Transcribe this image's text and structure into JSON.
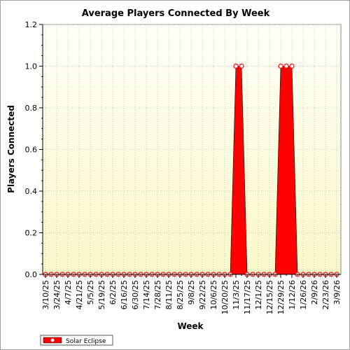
{
  "chart_data": {
    "type": "area",
    "title": "Average Players Connected By Week",
    "xlabel": "Week",
    "ylabel": "Players Connected",
    "ylim": [
      0,
      1.2
    ],
    "yticks": [
      "0.0",
      "0.2",
      "0.4",
      "0.6",
      "0.8",
      "1.0",
      "1.2"
    ],
    "x_tick_labels": [
      "3/10/25",
      "3/24/25",
      "4/7/25",
      "4/21/25",
      "5/5/25",
      "5/19/25",
      "6/2/25",
      "6/16/25",
      "6/30/25",
      "7/14/25",
      "7/28/25",
      "8/11/25",
      "8/25/25",
      "9/8/25",
      "9/22/25",
      "10/6/25",
      "10/20/25",
      "11/3/25",
      "11/17/25",
      "12/1/25",
      "12/15/25",
      "12/29/25",
      "1/12/26",
      "1/26/26",
      "2/9/26",
      "2/23/26",
      "3/9/26"
    ],
    "x": [
      "3/10/25",
      "3/17/25",
      "3/24/25",
      "3/31/25",
      "4/7/25",
      "4/14/25",
      "4/21/25",
      "4/28/25",
      "5/5/25",
      "5/12/25",
      "5/19/25",
      "5/26/25",
      "6/2/25",
      "6/9/25",
      "6/16/25",
      "6/23/25",
      "6/30/25",
      "7/7/25",
      "7/14/25",
      "7/21/25",
      "7/28/25",
      "8/4/25",
      "8/11/25",
      "8/18/25",
      "8/25/25",
      "9/1/25",
      "9/8/25",
      "9/15/25",
      "9/22/25",
      "9/29/25",
      "10/6/25",
      "10/13/25",
      "10/20/25",
      "10/27/25",
      "11/3/25",
      "11/10/25",
      "11/17/25",
      "11/24/25",
      "12/1/25",
      "12/8/25",
      "12/15/25",
      "12/22/25",
      "12/29/25",
      "1/5/26",
      "1/12/26",
      "1/19/26",
      "1/26/26",
      "2/2/26",
      "2/9/26",
      "2/16/26",
      "2/23/26",
      "3/2/26",
      "3/9/26"
    ],
    "series": [
      {
        "name": "Solar Eclipse",
        "color": "#ff0000",
        "values": [
          0,
          0,
          0,
          0,
          0,
          0,
          0,
          0,
          0,
          0,
          0,
          0,
          0,
          0,
          0,
          0,
          0,
          0,
          0,
          0,
          0,
          0,
          0,
          0,
          0,
          0,
          0,
          0,
          0,
          0,
          0,
          0,
          0,
          0,
          1,
          1,
          0,
          0,
          0,
          0,
          0,
          0,
          1,
          1,
          1,
          0,
          0,
          0,
          0,
          0,
          0,
          0,
          0
        ]
      }
    ],
    "grid": true,
    "legend": "bottom-left"
  },
  "colors": {
    "plot_bg_top": "#fffff5",
    "plot_bg_bottom": "#f7f7c9",
    "grid": "#c8c8c8",
    "series": "#ff0000"
  }
}
